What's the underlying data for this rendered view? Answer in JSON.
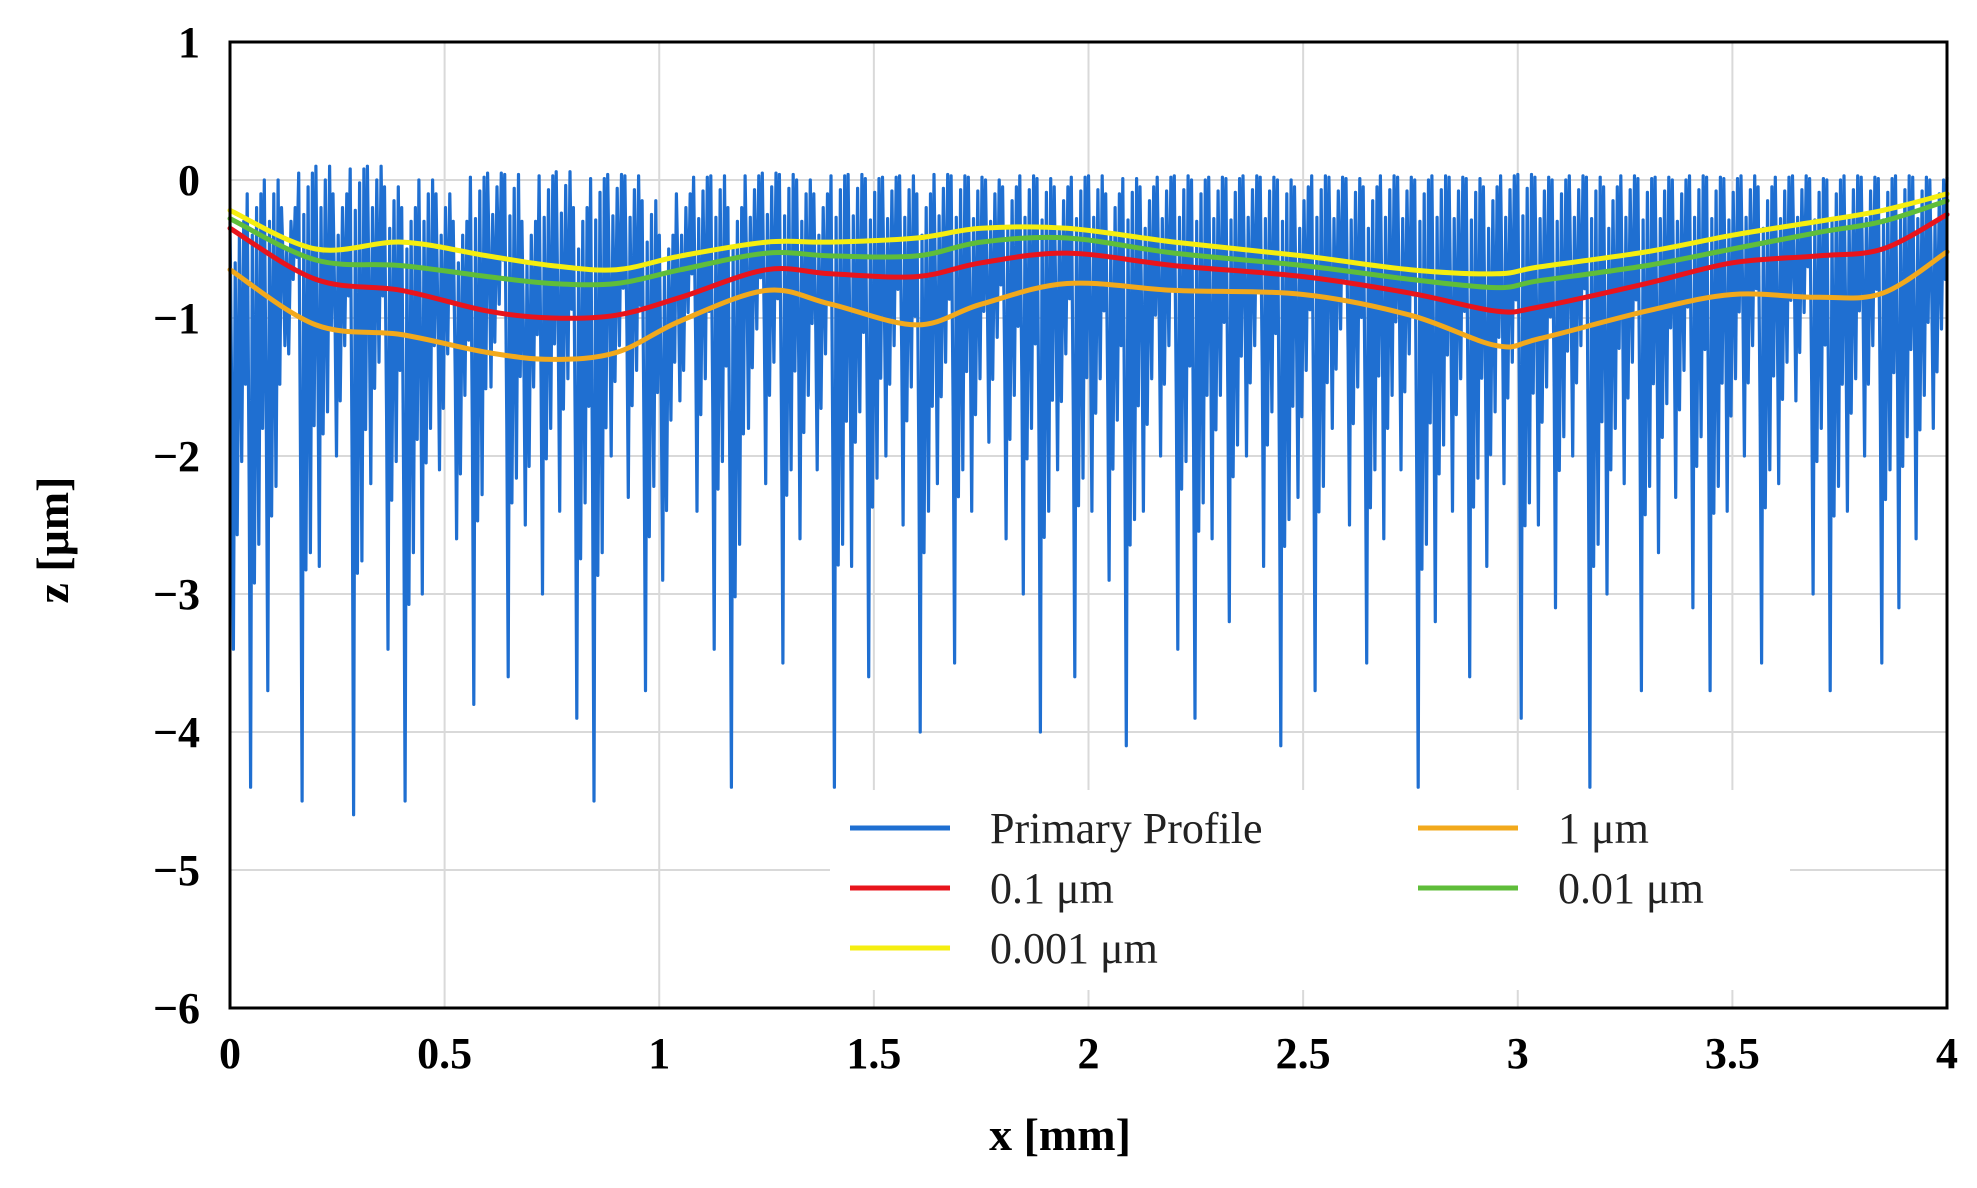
{
  "chart_data": {
    "type": "line",
    "title": "",
    "xlabel": "x [mm]",
    "ylabel": "z [μm]",
    "xlim": [
      0,
      4
    ],
    "ylim": [
      -6,
      1
    ],
    "grid": true,
    "xticks": [
      0,
      0.5,
      1,
      1.5,
      2,
      2.5,
      3,
      3.5,
      4
    ],
    "xtick_labels": [
      "0",
      "0.5",
      "1",
      "1.5",
      "2",
      "2.5",
      "3",
      "3.5",
      "4"
    ],
    "yticks": [
      1,
      0,
      -1,
      -2,
      -3,
      -4,
      -5,
      -6
    ],
    "ytick_labels": [
      "1",
      "0",
      "−1",
      "−2",
      "−3",
      "−4",
      "−5",
      "−6"
    ],
    "legend_position": "bottom-center",
    "primary_profile": {
      "name": "Primary Profile",
      "color": "#1f6fd1",
      "x_step": 0.04,
      "spike_minima": [
        -3.4,
        -4.4,
        -3.7,
        -1.2,
        -4.5,
        -2.8,
        -2.0,
        -4.6,
        -2.2,
        -3.4,
        -4.5,
        -3.0,
        -2.1,
        -2.6,
        -3.8,
        -1.5,
        -3.6,
        -2.5,
        -3.0,
        -2.4,
        -3.9,
        -4.5,
        -2.0,
        -2.3,
        -3.7,
        -2.9,
        -1.6,
        -2.4,
        -3.4,
        -4.4,
        -1.8,
        -2.2,
        -3.5,
        -2.6,
        -2.1,
        -4.4,
        -2.8,
        -3.6,
        -2.0,
        -2.5,
        -4.0,
        -2.2,
        -3.5,
        -2.4,
        -1.9,
        -2.6,
        -3.0,
        -4.0,
        -2.1,
        -3.6,
        -2.4,
        -2.9,
        -4.1,
        -2.4,
        -2.0,
        -3.4,
        -3.9,
        -2.6,
        -3.2,
        -2.0,
        -2.8,
        -4.1,
        -2.3,
        -3.7,
        -1.8,
        -2.5,
        -3.5,
        -2.6,
        -2.1,
        -4.4,
        -3.2,
        -2.4,
        -3.6,
        -2.8,
        -2.2,
        -3.9,
        -2.5,
        -3.1,
        -2.0,
        -4.4,
        -3.0,
        -2.2,
        -3.7,
        -2.7,
        -2.3,
        -3.1,
        -3.7,
        -2.4,
        -2.0,
        -3.5,
        -2.2,
        -1.6,
        -3.0,
        -3.7,
        -2.4,
        -2.0,
        -3.5,
        -3.1,
        -2.6,
        -1.8,
        -3.1
      ],
      "peak_maxima": [
        -0.3,
        -0.1,
        0.0,
        -0.2,
        0.05,
        0.1,
        -0.1,
        0.08,
        0.1,
        -0.05,
        -0.2,
        0.0,
        -0.1,
        -0.3,
        0.02,
        0.05,
        0.04,
        -0.3,
        0.03,
        0.06,
        -0.2,
        0.01,
        0.04,
        0.03,
        -0.15,
        -0.4,
        -0.1,
        0.02,
        0.03,
        -0.2,
        0.03,
        0.05,
        0.04,
        0.0,
        -0.1,
        0.03,
        0.04,
        0.01,
        0.02,
        0.03,
        -0.1,
        0.04,
        0.03,
        0.02,
        0.0,
        -0.05,
        0.03,
        0.01,
        -0.05,
        0.02,
        0.03,
        -0.1,
        0.01,
        -0.05,
        0.02,
        0.03,
        0.0,
        0.02,
        0.01,
        0.03,
        0.02,
        0.0,
        -0.05,
        0.03,
        0.02,
        0.01,
        -0.05,
        0.03,
        0.02,
        0.0,
        0.03,
        0.02,
        0.01,
        -0.05,
        0.03,
        0.04,
        0.02,
        0.0,
        0.03,
        0.02,
        -0.05,
        0.03,
        0.01,
        0.02,
        0.0,
        0.03,
        0.02,
        0.01,
        0.03,
        -0.05,
        0.02,
        0.03,
        0.01,
        0.0,
        0.03,
        0.02,
        0.01,
        0.03,
        0.02,
        0.0,
        0.02
      ]
    },
    "series": [
      {
        "name": "1 μm",
        "color": "#f2a91c",
        "x": [
          0,
          0.2,
          0.4,
          0.6,
          0.75,
          0.9,
          1.05,
          1.25,
          1.4,
          1.6,
          1.75,
          1.95,
          2.2,
          2.5,
          2.75,
          2.95,
          3.05,
          3.3,
          3.5,
          3.7,
          3.85,
          4.0
        ],
        "values": [
          -0.65,
          -1.05,
          -1.12,
          -1.25,
          -1.3,
          -1.25,
          -1.02,
          -0.8,
          -0.9,
          -1.05,
          -0.9,
          -0.75,
          -0.8,
          -0.83,
          -0.98,
          -1.2,
          -1.15,
          -0.95,
          -0.83,
          -0.85,
          -0.82,
          -0.52
        ]
      },
      {
        "name": "0.1 μm",
        "color": "#e8141c",
        "x": [
          0,
          0.2,
          0.4,
          0.6,
          0.75,
          0.9,
          1.05,
          1.25,
          1.4,
          1.6,
          1.75,
          1.95,
          2.2,
          2.5,
          2.75,
          2.95,
          3.05,
          3.3,
          3.5,
          3.7,
          3.85,
          4.0
        ],
        "values": [
          -0.35,
          -0.72,
          -0.8,
          -0.95,
          -1.0,
          -0.98,
          -0.85,
          -0.65,
          -0.68,
          -0.7,
          -0.6,
          -0.53,
          -0.62,
          -0.7,
          -0.82,
          -0.95,
          -0.92,
          -0.75,
          -0.6,
          -0.55,
          -0.5,
          -0.25
        ]
      },
      {
        "name": "0.01 μm",
        "color": "#5fbd3a",
        "x": [
          0,
          0.2,
          0.4,
          0.6,
          0.75,
          0.9,
          1.05,
          1.25,
          1.4,
          1.6,
          1.75,
          1.95,
          2.2,
          2.5,
          2.75,
          2.95,
          3.05,
          3.3,
          3.5,
          3.7,
          3.85,
          4.0
        ],
        "values": [
          -0.28,
          -0.58,
          -0.62,
          -0.7,
          -0.75,
          -0.75,
          -0.65,
          -0.53,
          -0.55,
          -0.55,
          -0.45,
          -0.42,
          -0.53,
          -0.62,
          -0.72,
          -0.78,
          -0.73,
          -0.62,
          -0.5,
          -0.38,
          -0.3,
          -0.15
        ]
      },
      {
        "name": "0.001 μm",
        "color": "#f5ee10",
        "x": [
          0,
          0.2,
          0.4,
          0.6,
          0.75,
          0.9,
          1.05,
          1.25,
          1.4,
          1.6,
          1.75,
          1.95,
          2.2,
          2.5,
          2.75,
          2.95,
          3.05,
          3.3,
          3.5,
          3.7,
          3.85,
          4.0
        ],
        "values": [
          -0.22,
          -0.5,
          -0.45,
          -0.55,
          -0.62,
          -0.65,
          -0.55,
          -0.45,
          -0.45,
          -0.42,
          -0.35,
          -0.35,
          -0.45,
          -0.55,
          -0.65,
          -0.68,
          -0.63,
          -0.52,
          -0.4,
          -0.3,
          -0.22,
          -0.1
        ]
      }
    ],
    "legend": [
      {
        "label": "Primary Profile",
        "color": "#1f6fd1"
      },
      {
        "label": "1 μm",
        "color": "#f2a91c"
      },
      {
        "label": "0.1 μm",
        "color": "#e8141c"
      },
      {
        "label": "0.01 μm",
        "color": "#5fbd3a"
      },
      {
        "label": "0.001 μm",
        "color": "#f5ee10"
      }
    ]
  }
}
